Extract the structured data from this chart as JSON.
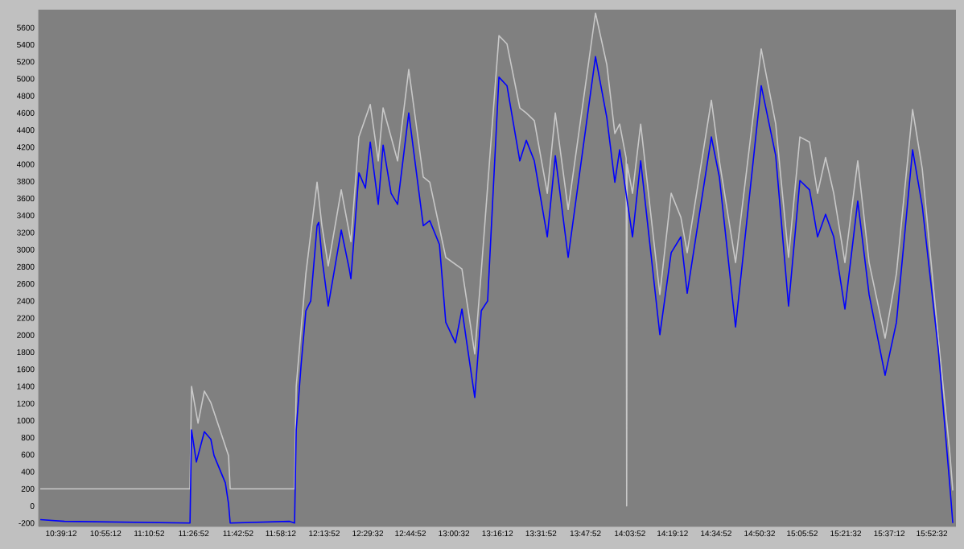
{
  "chart_data": {
    "type": "line",
    "marker": "none",
    "line_style": "solid",
    "grid": false,
    "xlim": [
      10.518,
      16.02
    ],
    "ylim": [
      -240,
      5810
    ],
    "xticks": [
      {
        "value": 10.6533,
        "label": "10:39:12"
      },
      {
        "value": 10.92,
        "label": "10:55:12"
      },
      {
        "value": 11.1811,
        "label": "11:10:52"
      },
      {
        "value": 11.4478,
        "label": "11:26:52"
      },
      {
        "value": 11.7144,
        "label": "11:42:52"
      },
      {
        "value": 11.97,
        "label": "11:58:12"
      },
      {
        "value": 12.2311,
        "label": "12:13:52"
      },
      {
        "value": 12.4922,
        "label": "12:29:32"
      },
      {
        "value": 12.7478,
        "label": "12:44:52"
      },
      {
        "value": 13.0089,
        "label": "13:00:32"
      },
      {
        "value": 13.27,
        "label": "13:16:12"
      },
      {
        "value": 13.5311,
        "label": "13:31:52"
      },
      {
        "value": 13.7978,
        "label": "13:47:52"
      },
      {
        "value": 14.0644,
        "label": "14:03:52"
      },
      {
        "value": 14.32,
        "label": "14:19:12"
      },
      {
        "value": 14.5811,
        "label": "14:34:52"
      },
      {
        "value": 14.8422,
        "label": "14:50:32"
      },
      {
        "value": 15.0978,
        "label": "15:05:52"
      },
      {
        "value": 15.3589,
        "label": "15:21:32"
      },
      {
        "value": 15.62,
        "label": "15:37:12"
      },
      {
        "value": 15.8756,
        "label": "15:52:32"
      }
    ],
    "yticks": [
      -200,
      0,
      200,
      400,
      600,
      800,
      1000,
      1200,
      1400,
      1600,
      1800,
      2000,
      2200,
      2400,
      2600,
      2800,
      3000,
      3200,
      3400,
      3600,
      3800,
      4000,
      4200,
      4400,
      4600,
      4800,
      5000,
      5200,
      5400,
      5600
    ],
    "series": [
      {
        "color": "#c8c8c8",
        "x": [
          10.528,
          11.426,
          11.435,
          11.474,
          11.512,
          11.551,
          11.657,
          11.667,
          12.053,
          12.063,
          12.121,
          12.188,
          12.217,
          12.255,
          12.333,
          12.391,
          12.439,
          12.507,
          12.555,
          12.584,
          12.671,
          12.738,
          12.825,
          12.864,
          12.96,
          13.057,
          13.134,
          13.173,
          13.279,
          13.327,
          13.404,
          13.443,
          13.491,
          13.569,
          13.617,
          13.694,
          13.858,
          13.926,
          13.974,
          14.003,
          14.042,
          14.045,
          14.048,
          14.08,
          14.129,
          14.244,
          14.312,
          14.37,
          14.408,
          14.553,
          14.601,
          14.698,
          14.852,
          14.939,
          15.016,
          15.084,
          15.142,
          15.19,
          15.238,
          15.287,
          15.354,
          15.431,
          15.499,
          15.595,
          15.663,
          15.76,
          15.818,
          15.914,
          15.982,
          16.001
        ],
        "values": [
          200,
          200,
          1400,
          970,
          1345,
          1210,
          590,
          200,
          200,
          1400,
          2720,
          3790,
          3280,
          2810,
          3700,
          3095,
          4320,
          4700,
          4040,
          4660,
          4040,
          5110,
          3850,
          3790,
          2910,
          2775,
          1780,
          2750,
          5505,
          5410,
          4660,
          4600,
          4510,
          3660,
          4600,
          3470,
          5770,
          5165,
          4360,
          4470,
          4070,
          0,
          4000,
          3660,
          4470,
          2475,
          3660,
          3380,
          2965,
          4750,
          4040,
          2850,
          5350,
          4470,
          2910,
          4320,
          4260,
          3660,
          4080,
          3660,
          2850,
          4040,
          2850,
          1965,
          2720,
          4640,
          3945,
          1965,
          650,
          180
        ]
      },
      {
        "color": "#0000ff",
        "x": [
          10.528,
          10.673,
          11.426,
          11.435,
          11.464,
          11.512,
          11.551,
          11.57,
          11.638,
          11.657,
          11.667,
          12.024,
          12.053,
          12.063,
          12.092,
          12.121,
          12.15,
          12.188,
          12.198,
          12.217,
          12.255,
          12.333,
          12.381,
          12.391,
          12.439,
          12.478,
          12.507,
          12.555,
          12.584,
          12.632,
          12.671,
          12.738,
          12.825,
          12.864,
          12.922,
          12.96,
          13.018,
          13.057,
          13.086,
          13.134,
          13.173,
          13.211,
          13.279,
          13.327,
          13.404,
          13.443,
          13.491,
          13.569,
          13.617,
          13.694,
          13.858,
          13.926,
          13.974,
          14.003,
          14.08,
          14.129,
          14.244,
          14.312,
          14.37,
          14.408,
          14.553,
          14.601,
          14.698,
          14.852,
          14.939,
          15.016,
          15.084,
          15.142,
          15.19,
          15.238,
          15.287,
          15.354,
          15.431,
          15.499,
          15.595,
          15.663,
          15.76,
          15.818,
          15.914,
          15.982,
          16.001
        ],
        "values": [
          -160,
          -180,
          -200,
          890,
          515,
          870,
          780,
          590,
          270,
          25,
          -200,
          -180,
          -200,
          890,
          1645,
          2285,
          2400,
          3280,
          3320,
          2910,
          2340,
          3230,
          2775,
          2660,
          3900,
          3720,
          4260,
          3530,
          4225,
          3660,
          3530,
          4600,
          3280,
          3340,
          3060,
          2150,
          1910,
          2305,
          1910,
          1270,
          2285,
          2400,
          5020,
          4920,
          4040,
          4280,
          4040,
          3150,
          4100,
          2910,
          5260,
          4545,
          3790,
          4170,
          3150,
          4040,
          2005,
          2965,
          3150,
          2490,
          4320,
          3850,
          2095,
          4920,
          4100,
          2340,
          3810,
          3700,
          3150,
          3415,
          3150,
          2305,
          3570,
          2475,
          1530,
          2150,
          4170,
          3510,
          1835,
          270,
          -200
        ]
      }
    ]
  }
}
